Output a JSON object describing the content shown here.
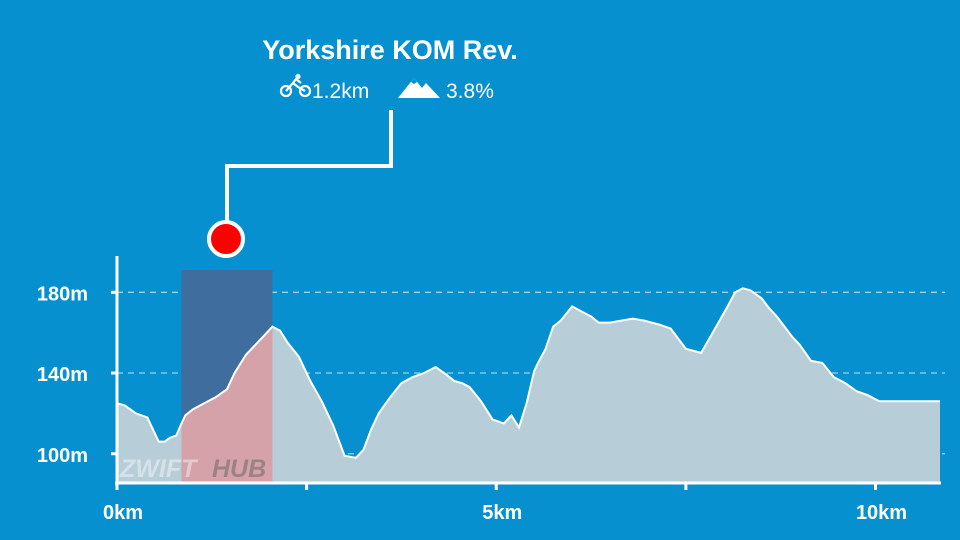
{
  "segment": {
    "name": "Yorkshire KOM Rev.",
    "distance": "1.2km",
    "gradient": "3.8%",
    "icons": {
      "distance": "cyclist-icon",
      "gradient": "mountain-icon"
    }
  },
  "watermark": {
    "left": "ZWIFT",
    "right": "HUB"
  },
  "colors": {
    "background": "#0690d0",
    "profile_fill": "#b7ced8",
    "segment_fill": "#d4a2a8",
    "segment_band": "#3f6d9e",
    "marker": "#ff0000",
    "text": "#ffffff"
  },
  "chart_data": {
    "type": "area",
    "title": "",
    "xlabel": "",
    "ylabel": "",
    "x_unit": "km",
    "y_unit": "m",
    "xlim": [
      0,
      10.85
    ],
    "ylim": [
      86,
      198
    ],
    "x_ticks": [
      0,
      2.5,
      5,
      7.5,
      10
    ],
    "x_tick_labels": [
      "0km",
      "",
      "5km",
      "",
      "10km"
    ],
    "y_ticks": [
      100,
      140,
      180
    ],
    "y_tick_labels": [
      "100m",
      "140m",
      "180m"
    ],
    "grid": "horizontal-dashed",
    "highlight": {
      "start": 0.85,
      "end": 2.05
    },
    "series": [
      {
        "x": [
          0,
          0.1,
          0.25,
          0.4,
          0.55,
          0.63,
          0.7,
          0.78,
          0.85,
          0.9,
          1.0,
          1.15,
          1.3,
          1.45,
          1.55,
          1.7,
          1.85,
          2.0,
          2.05,
          2.15,
          2.25,
          2.4,
          2.55,
          2.7,
          2.85,
          3.0,
          3.15,
          3.25,
          3.35,
          3.45,
          3.6,
          3.75,
          3.9,
          4.05,
          4.2,
          4.35,
          4.45,
          4.55,
          4.65,
          4.8,
          4.95,
          5.1,
          5.2,
          5.3,
          5.4,
          5.5,
          5.55,
          5.65,
          5.75,
          5.85,
          6.0,
          6.15,
          6.25,
          6.35,
          6.5,
          6.65,
          6.8,
          6.95,
          7.15,
          7.3,
          7.5,
          7.7,
          7.9,
          8.05,
          8.15,
          8.25,
          8.35,
          8.5,
          8.6,
          8.7,
          8.8,
          8.9,
          9.0,
          9.15,
          9.3,
          9.45,
          9.6,
          9.75,
          9.9,
          10.05,
          10.2,
          10.35,
          10.5,
          10.6,
          10.7,
          10.8,
          10.85
        ],
        "y": [
          125,
          124,
          120,
          118,
          106,
          106,
          108,
          109,
          115,
          119,
          122,
          125,
          128,
          132,
          140,
          149,
          155,
          161,
          163,
          161,
          155,
          148,
          136,
          126,
          114,
          99,
          98,
          102,
          112,
          120,
          128,
          135,
          138,
          140,
          143,
          139,
          136,
          135,
          133,
          126,
          117,
          115,
          119,
          113,
          125,
          141,
          145,
          152,
          163,
          166,
          173,
          170,
          168,
          165,
          165,
          166,
          167,
          166,
          164,
          162,
          152,
          150,
          163,
          173,
          180,
          182,
          181,
          177,
          172,
          168,
          163,
          158,
          154,
          146,
          145,
          138,
          135,
          131,
          129,
          126,
          126,
          126,
          126,
          126,
          126,
          126,
          126
        ]
      }
    ]
  }
}
